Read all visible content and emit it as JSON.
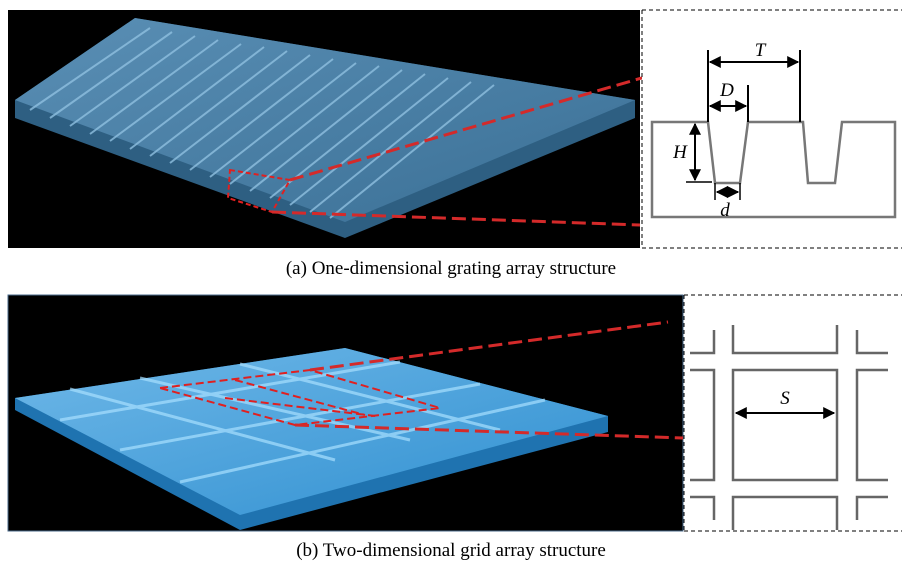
{
  "panels": [
    {
      "caption": "(a) One-dimensional grating array structure",
      "labels": {
        "period": "T",
        "top_width": "D",
        "height": "H",
        "bottom_width": "d"
      }
    },
    {
      "caption": "(b) Two-dimensional grid array structure",
      "labels": {
        "side": "S"
      }
    }
  ]
}
